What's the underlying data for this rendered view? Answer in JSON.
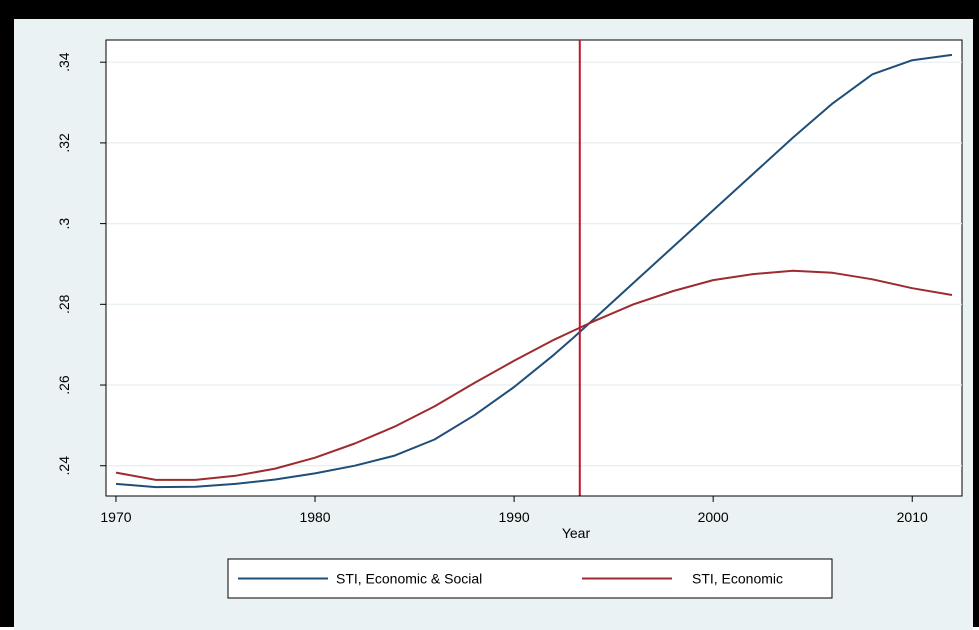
{
  "chart_data": {
    "type": "line",
    "title": "",
    "xlabel": "Year",
    "ylabel": "",
    "xlim": [
      1969.5,
      2012.5
    ],
    "ylim": [
      0.2325,
      0.3455
    ],
    "x_ticks": [
      1970,
      1980,
      1990,
      2000,
      2010
    ],
    "x_tick_labels": [
      "1970",
      "1980",
      "1990",
      "2000",
      "2010"
    ],
    "y_ticks": [
      0.24,
      0.26,
      0.28,
      0.3,
      0.32,
      0.34
    ],
    "y_tick_labels": [
      ".24",
      ".26",
      ".28",
      ".3",
      ".32",
      ".34"
    ],
    "grid": "horizontal",
    "legend_position": "bottom",
    "reference_line": {
      "axis": "x",
      "value": 1993.3,
      "color": "#c4142c"
    },
    "x": [
      1970,
      1972,
      1974,
      1976,
      1978,
      1980,
      1982,
      1984,
      1986,
      1988,
      1990,
      1992,
      1993,
      1994,
      1996,
      1998,
      2000,
      2002,
      2004,
      2006,
      2008,
      2010,
      2012
    ],
    "series": [
      {
        "name": "STI, Economic & Social",
        "color": "#1f4e79",
        "values": [
          0.2355,
          0.2347,
          0.2348,
          0.2355,
          0.2366,
          0.2381,
          0.24,
          0.2425,
          0.2465,
          0.2525,
          0.2595,
          0.2675,
          0.2718,
          0.2763,
          0.2853,
          0.2943,
          0.3033,
          0.3123,
          0.3213,
          0.3298,
          0.337,
          0.3405,
          0.3418
        ]
      },
      {
        "name": "STI, Economic",
        "color": "#9e2b2f",
        "values": [
          0.2383,
          0.2365,
          0.2365,
          0.2375,
          0.2393,
          0.242,
          0.2455,
          0.2497,
          0.2547,
          0.2605,
          0.266,
          0.2712,
          0.2735,
          0.2758,
          0.28,
          0.2833,
          0.286,
          0.2875,
          0.2883,
          0.2878,
          0.2862,
          0.284,
          0.2823
        ]
      }
    ]
  }
}
